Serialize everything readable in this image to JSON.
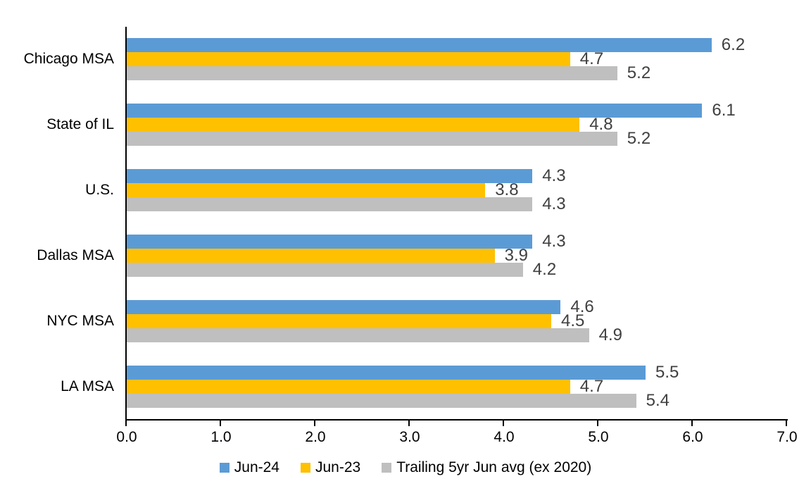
{
  "chart_data": {
    "type": "bar",
    "orientation": "horizontal",
    "title": "",
    "categories": [
      "Chicago MSA",
      "State of IL",
      "U.S.",
      "Dallas MSA",
      "NYC MSA",
      "LA MSA"
    ],
    "series": [
      {
        "name": "Jun-24",
        "color": "#5B9BD5",
        "values": [
          6.2,
          6.1,
          4.3,
          4.3,
          4.6,
          5.5
        ]
      },
      {
        "name": "Jun-23",
        "color": "#FFC000",
        "values": [
          4.7,
          4.8,
          3.8,
          3.9,
          4.5,
          4.7
        ]
      },
      {
        "name": "Trailing 5yr Jun avg (ex 2020)",
        "color": "#BFBFBF",
        "values": [
          5.2,
          5.2,
          4.3,
          4.2,
          4.9,
          5.4
        ]
      }
    ],
    "x_axis": {
      "min": 0,
      "max": 7,
      "tick_step": 1,
      "tick_labels": [
        "0.0",
        "1.0",
        "2.0",
        "3.0",
        "4.0",
        "5.0",
        "6.0",
        "7.0"
      ]
    },
    "data_labels_shown": true,
    "legend_position": "bottom",
    "grid": false,
    "colors": {
      "axis": "#000000",
      "category_text": "#000000",
      "tick_text": "#000000",
      "data_label_text": "#404040",
      "background": "#FFFFFF"
    }
  }
}
